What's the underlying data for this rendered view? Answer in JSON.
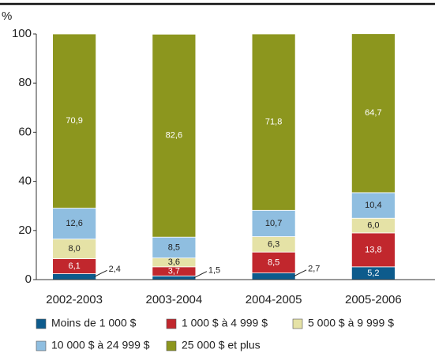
{
  "chart_data": {
    "type": "stacked-bar",
    "y_label": "%",
    "categories": [
      "2002-2003",
      "2003-2004",
      "2004-2005",
      "2005-2006"
    ],
    "ylim": [
      0,
      100
    ],
    "yticks": [
      0,
      20,
      40,
      60,
      80,
      100
    ],
    "series": [
      {
        "name": "Moins de 1 000 $",
        "color": "#0d5b8c",
        "values": [
          2.4,
          1.5,
          2.7,
          5.2
        ],
        "value_labels": [
          "2,4",
          "1,5",
          "2,7",
          "5,2"
        ]
      },
      {
        "name": "1 000 $ à 4 999 $",
        "color": "#c1272d",
        "values": [
          6.1,
          3.7,
          8.5,
          13.8
        ],
        "value_labels": [
          "6,1",
          "3,7",
          "8,5",
          "13,8"
        ]
      },
      {
        "name": "5 000 $ à 9 999 $",
        "color": "#e5e2a6",
        "values": [
          8.0,
          3.6,
          6.3,
          6.0
        ],
        "value_labels": [
          "8,0",
          "3,6",
          "6,3",
          "6,0"
        ]
      },
      {
        "name": "10 000 $ à 24 999 $",
        "color": "#8fbee0",
        "values": [
          12.6,
          8.5,
          10.7,
          10.4
        ],
        "value_labels": [
          "12,6",
          "8,5",
          "10,7",
          "10,4"
        ]
      },
      {
        "name": "25 000 $ et plus",
        "color": "#8c961e",
        "values": [
          70.9,
          82.6,
          71.8,
          64.7
        ],
        "value_labels": [
          "70,9",
          "82,6",
          "71,8",
          "64,7"
        ]
      }
    ]
  }
}
